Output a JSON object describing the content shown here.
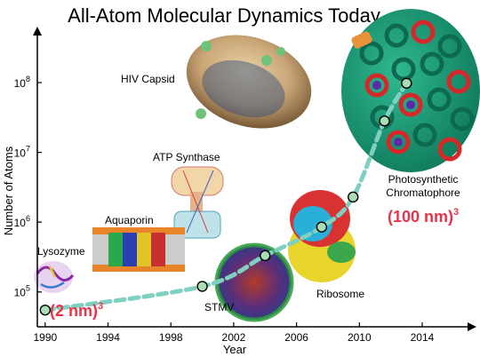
{
  "chart_data": {
    "type": "scatter",
    "title": "All-Atom Molecular Dynamics Today",
    "xlabel": "Year",
    "ylabel": "Number of Atoms",
    "x_range": [
      1989.5,
      2017
    ],
    "y_range_log10": [
      4.5,
      8.7
    ],
    "y_scale": "log",
    "x_ticks": [
      {
        "value": 1990,
        "label": "1990"
      },
      {
        "value": 1994,
        "label": "1994"
      },
      {
        "value": 1998,
        "label": "1998"
      },
      {
        "value": 2002,
        "label": "2002"
      },
      {
        "value": 2006,
        "label": "2006"
      },
      {
        "value": 2010,
        "label": "2010"
      },
      {
        "value": 2014,
        "label": "2014"
      }
    ],
    "y_ticks": [
      {
        "exp": 5,
        "label": "10",
        "sup": "5"
      },
      {
        "exp": 6,
        "label": "10",
        "sup": "6"
      },
      {
        "exp": 7,
        "label": "10",
        "sup": "7"
      },
      {
        "exp": 8,
        "label": "10",
        "sup": "8"
      }
    ],
    "points": [
      {
        "year": 1990.0,
        "log10_atoms": 4.74
      },
      {
        "year": 2000.0,
        "log10_atoms": 5.08
      },
      {
        "year": 2004.0,
        "log10_atoms": 5.52
      },
      {
        "year": 2007.6,
        "log10_atoms": 5.93
      },
      {
        "year": 2009.6,
        "log10_atoms": 6.36
      },
      {
        "year": 2011.6,
        "log10_atoms": 7.45
      },
      {
        "year": 2013.0,
        "log10_atoms": 7.99
      }
    ],
    "trend_color": "#7fd0c0",
    "point_fill": "#a8ddb5",
    "grid": false,
    "legend": "none"
  },
  "annotations": {
    "lysozyme": "Lysozyme",
    "aquaporin": "Aquaporin",
    "atp_synthase": "ATP Synthase",
    "stmv": "STMV",
    "ribosome": "Ribosome",
    "hiv_capsid": "HIV Capsid",
    "chromatophore_line1": "Photosynthetic",
    "chromatophore_line2": "Chromatophore",
    "size_small": "(2 nm)",
    "size_small_sup": "3",
    "size_large": "(100 nm)",
    "size_large_sup": "3"
  },
  "colors": {
    "highlight_red": "#e8334a",
    "axis": "#000000"
  }
}
